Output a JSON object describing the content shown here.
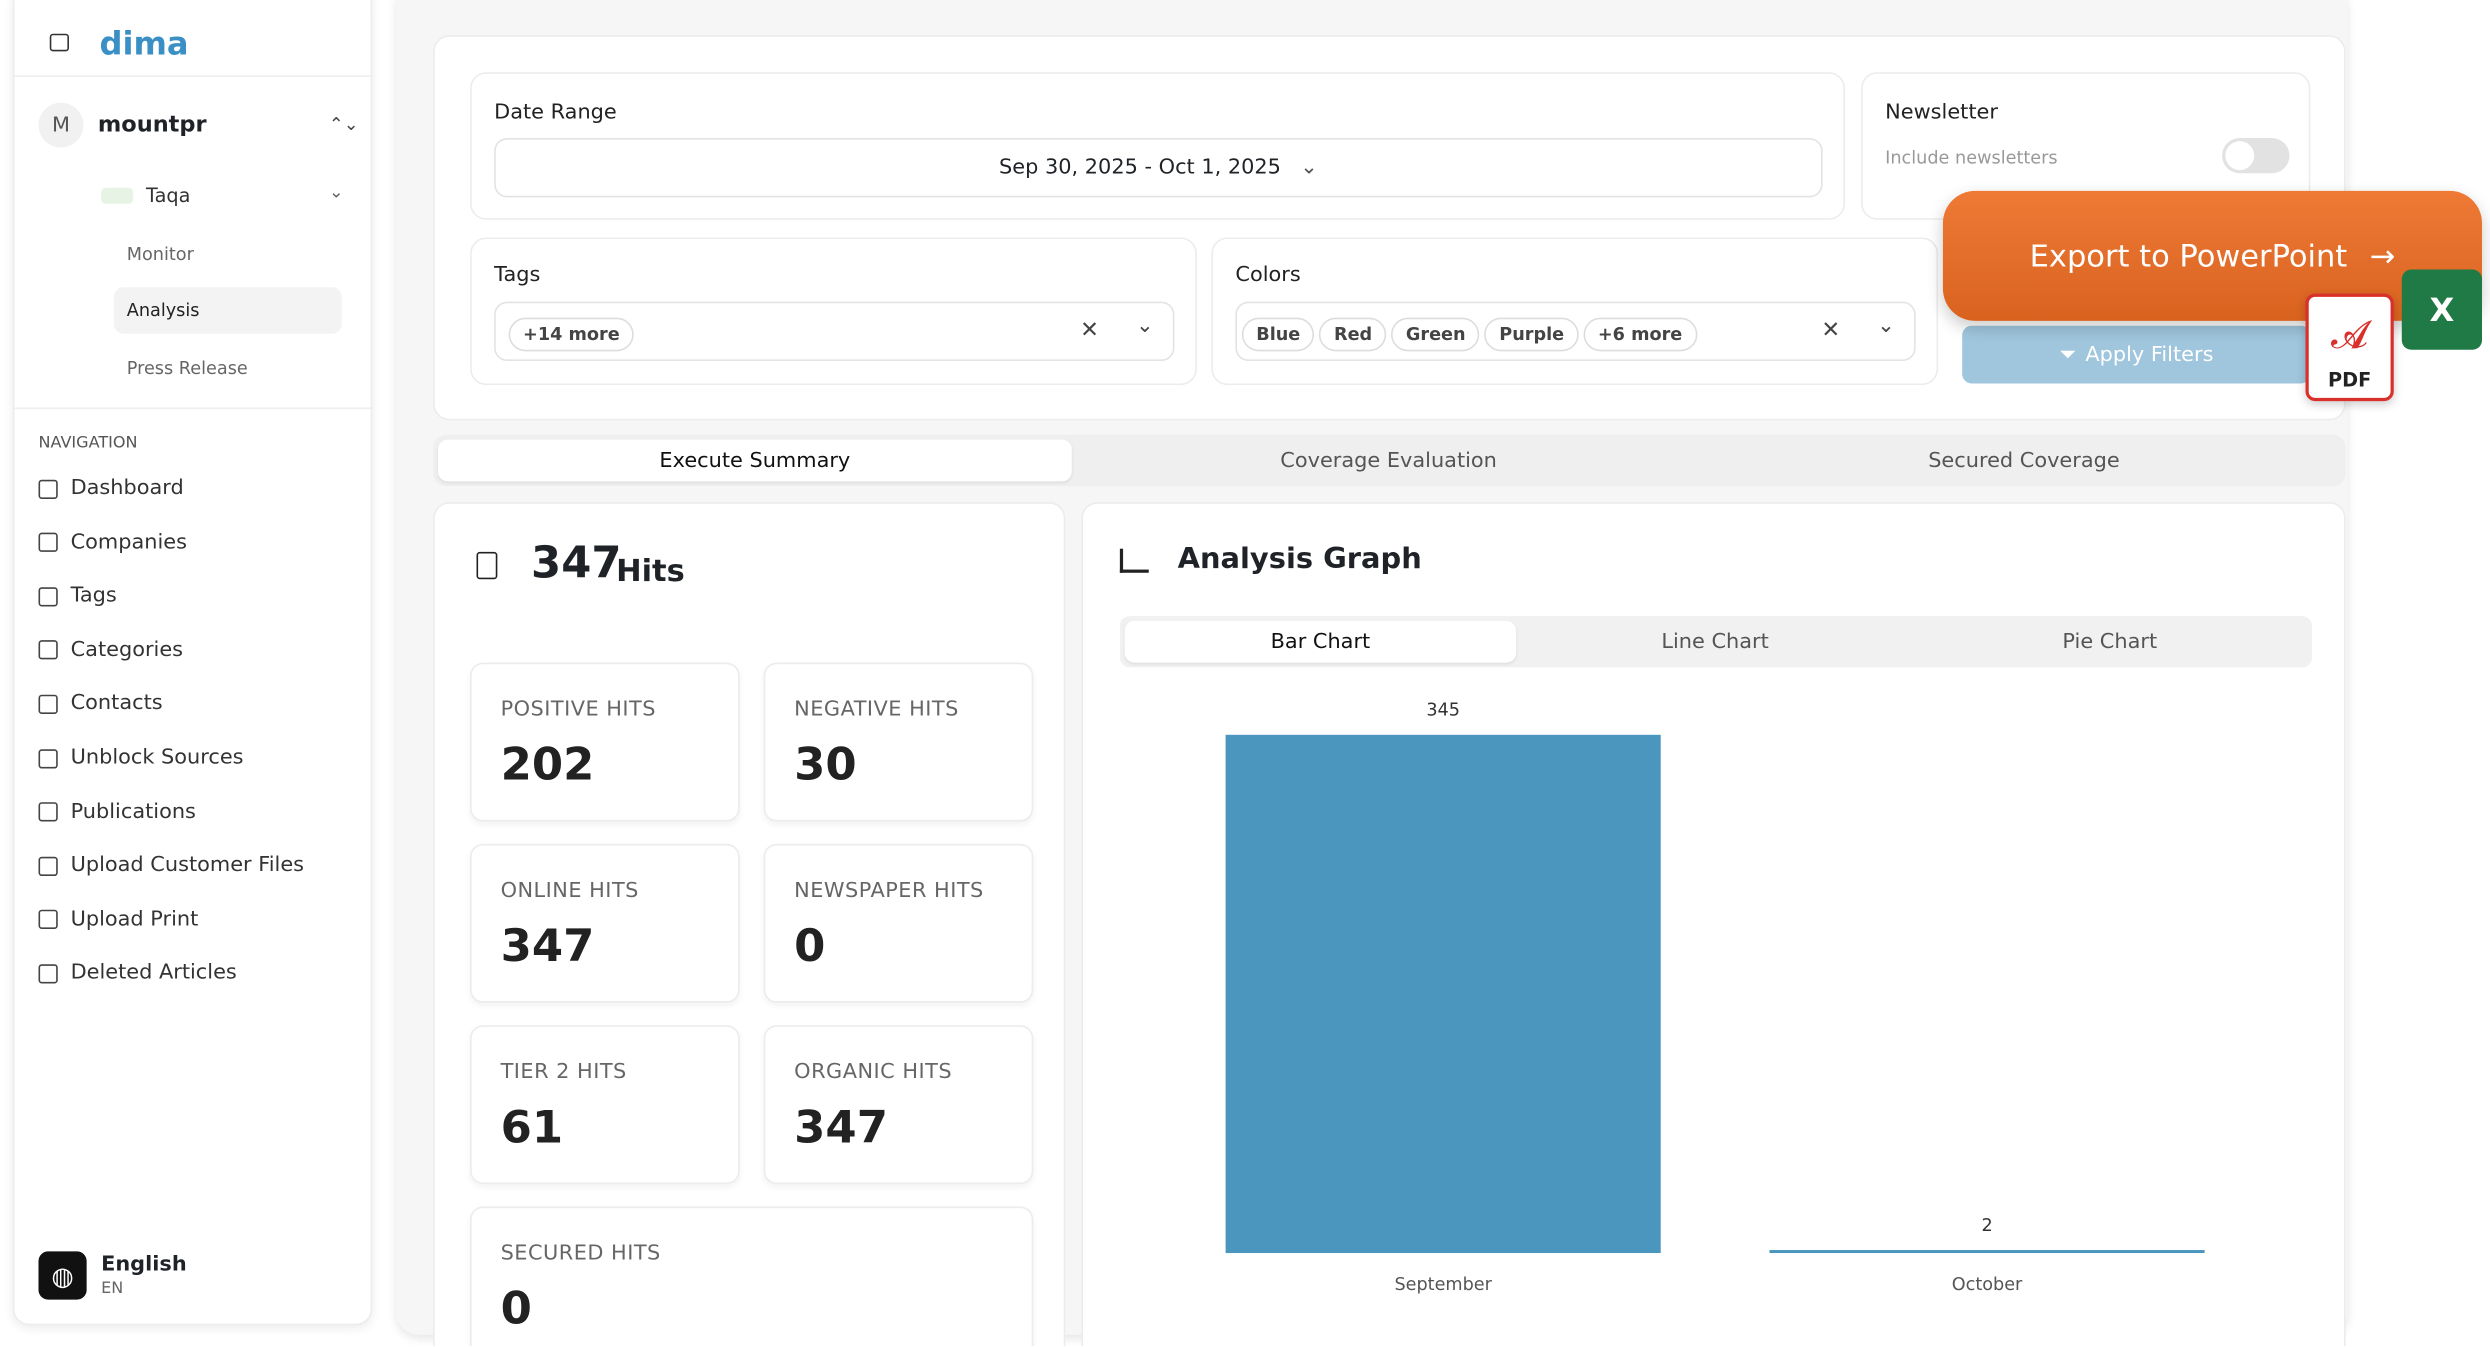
{
  "sidebar": {
    "brand": "dima",
    "workspace_initial": "M",
    "workspace": "mountpr",
    "client": "Taqa",
    "subnav": [
      "Monitor",
      "Analysis",
      "Press Release"
    ],
    "nav_heading": "NAVIGATION",
    "nav": [
      "Dashboard",
      "Companies",
      "Tags",
      "Categories",
      "Contacts",
      "Unblock Sources",
      "Publications",
      "Upload Customer Files",
      "Upload Print",
      "Deleted Articles"
    ],
    "language": "English",
    "language_code": "EN"
  },
  "filters": {
    "date_label": "Date Range",
    "date_value": "Sep 30, 2025 - Oct 1, 2025",
    "newsletter_label": "Newsletter",
    "newsletter_hint": "Include newsletters",
    "tags_label": "Tags",
    "tags": [
      "+14 more"
    ],
    "colors_label": "Colors",
    "colors": [
      "Blue",
      "Red",
      "Green",
      "Purple",
      "+6 more"
    ],
    "export": "Export to PowerPoint",
    "apply": "Apply Filters",
    "pdf": "PDF",
    "excel": "X"
  },
  "tabs": [
    "Execute Summary",
    "Coverage Evaluation",
    "Secured Coverage"
  ],
  "summary": {
    "hits": 347,
    "hits_label": "Hits",
    "cards": [
      {
        "label": "POSITIVE HITS",
        "value": 202
      },
      {
        "label": "NEGATIVE HITS",
        "value": 30
      },
      {
        "label": "ONLINE HITS",
        "value": 347
      },
      {
        "label": "NEWSPAPER HITS",
        "value": 0
      },
      {
        "label": "TIER 2 HITS",
        "value": 61
      },
      {
        "label": "ORGANIC HITS",
        "value": 347
      },
      {
        "label": "SECURED HITS",
        "value": 0
      }
    ]
  },
  "graph": {
    "title": "Analysis Graph",
    "chart_tabs": [
      "Bar Chart",
      "Line Chart",
      "Pie Chart"
    ]
  },
  "chart_data": {
    "type": "bar",
    "categories": [
      "September",
      "October"
    ],
    "values": [
      345,
      2
    ],
    "color": "#4a96bf"
  }
}
